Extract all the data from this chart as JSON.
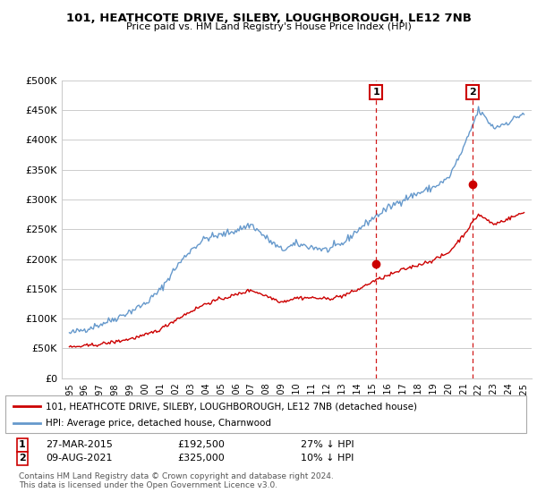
{
  "title": "101, HEATHCOTE DRIVE, SILEBY, LOUGHBOROUGH, LE12 7NB",
  "subtitle": "Price paid vs. HM Land Registry's House Price Index (HPI)",
  "legend_label_red": "101, HEATHCOTE DRIVE, SILEBY, LOUGHBOROUGH, LE12 7NB (detached house)",
  "legend_label_blue": "HPI: Average price, detached house, Charnwood",
  "footnote": "Contains HM Land Registry data © Crown copyright and database right 2024.\nThis data is licensed under the Open Government Licence v3.0.",
  "transaction1_date": "27-MAR-2015",
  "transaction1_price": "£192,500",
  "transaction1_hpi": "27% ↓ HPI",
  "transaction1_year": 2015.23,
  "transaction1_value": 192500,
  "transaction2_date": "09-AUG-2021",
  "transaction2_price": "£325,000",
  "transaction2_hpi": "10% ↓ HPI",
  "transaction2_year": 2021.61,
  "transaction2_value": 325000,
  "ylim": [
    0,
    500000
  ],
  "yticks": [
    0,
    50000,
    100000,
    150000,
    200000,
    250000,
    300000,
    350000,
    400000,
    450000,
    500000
  ],
  "ytick_labels": [
    "£0",
    "£50K",
    "£100K",
    "£150K",
    "£200K",
    "£250K",
    "£300K",
    "£350K",
    "£400K",
    "£450K",
    "£500K"
  ],
  "xlim": [
    1994.5,
    2025.5
  ],
  "background_color": "#ffffff",
  "grid_color": "#cccccc",
  "red_color": "#cc0000",
  "blue_color": "#6699cc",
  "dashed_color": "#cc0000",
  "hpi_base_points": [
    [
      1995,
      75000
    ],
    [
      1996,
      82000
    ],
    [
      1997,
      90000
    ],
    [
      1998,
      100000
    ],
    [
      1999,
      112000
    ],
    [
      2000,
      125000
    ],
    [
      2001,
      148000
    ],
    [
      2002,
      185000
    ],
    [
      2003,
      215000
    ],
    [
      2004,
      235000
    ],
    [
      2005,
      240000
    ],
    [
      2006,
      248000
    ],
    [
      2007,
      258000
    ],
    [
      2008,
      235000
    ],
    [
      2009,
      215000
    ],
    [
      2010,
      225000
    ],
    [
      2011,
      220000
    ],
    [
      2012,
      215000
    ],
    [
      2013,
      225000
    ],
    [
      2014,
      248000
    ],
    [
      2015,
      268000
    ],
    [
      2016,
      285000
    ],
    [
      2017,
      300000
    ],
    [
      2018,
      310000
    ],
    [
      2019,
      320000
    ],
    [
      2020,
      335000
    ],
    [
      2021,
      385000
    ],
    [
      2022,
      450000
    ],
    [
      2023,
      420000
    ],
    [
      2024,
      430000
    ],
    [
      2025,
      445000
    ]
  ],
  "red_base_points": [
    [
      1995,
      52000
    ],
    [
      1996,
      54000
    ],
    [
      1997,
      57000
    ],
    [
      1998,
      61000
    ],
    [
      1999,
      66000
    ],
    [
      2000,
      72000
    ],
    [
      2001,
      82000
    ],
    [
      2002,
      98000
    ],
    [
      2003,
      112000
    ],
    [
      2004,
      125000
    ],
    [
      2005,
      133000
    ],
    [
      2006,
      140000
    ],
    [
      2007,
      148000
    ],
    [
      2008,
      138000
    ],
    [
      2009,
      128000
    ],
    [
      2010,
      135000
    ],
    [
      2011,
      135000
    ],
    [
      2012,
      133000
    ],
    [
      2013,
      138000
    ],
    [
      2014,
      148000
    ],
    [
      2015,
      162000
    ],
    [
      2016,
      172000
    ],
    [
      2017,
      182000
    ],
    [
      2018,
      190000
    ],
    [
      2019,
      198000
    ],
    [
      2020,
      210000
    ],
    [
      2021,
      240000
    ],
    [
      2022,
      275000
    ],
    [
      2023,
      258000
    ],
    [
      2024,
      268000
    ],
    [
      2025,
      278000
    ]
  ]
}
